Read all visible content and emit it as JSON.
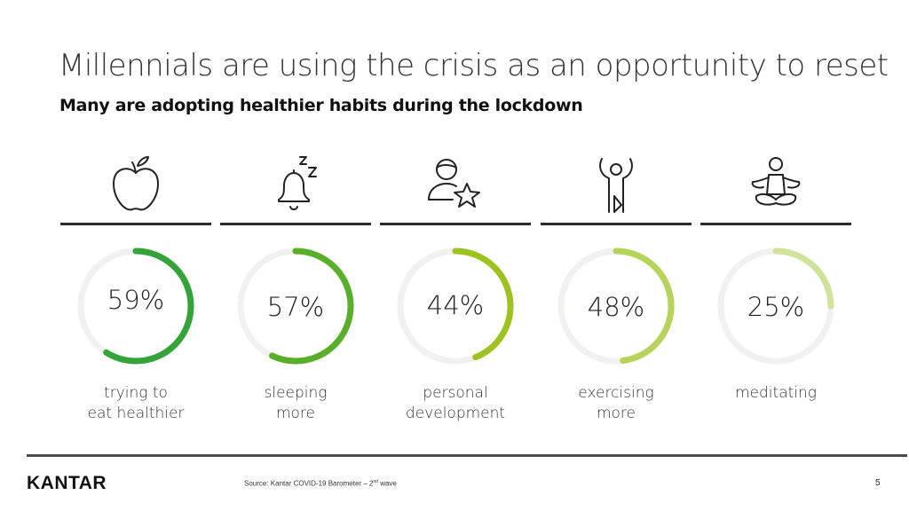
{
  "title": "Millennials are using the crisis as an opportunity to reset",
  "subtitle": "Many are adopting healthier habits during the lockdown",
  "chart_data": {
    "type": "pie",
    "categories": [
      "trying to eat healthier",
      "sleeping more",
      "personal development",
      "exercising more",
      "meditating"
    ],
    "values": [
      59,
      57,
      44,
      48,
      25
    ],
    "unit": "%",
    "items": [
      {
        "pct_text": "59%",
        "label_lines": [
          "trying to",
          "eat healthier"
        ],
        "icon": "apple-icon",
        "color": "#34a43a"
      },
      {
        "pct_text": "57%",
        "label_lines": [
          "sleeping",
          "more"
        ],
        "icon": "alarm-bell-zz-icon",
        "color": "#5aaf2a"
      },
      {
        "pct_text": "44%",
        "label_lines": [
          "personal",
          "development"
        ],
        "icon": "person-star-icon",
        "color": "#9ec21f"
      },
      {
        "pct_text": "48%",
        "label_lines": [
          "exercising",
          "more"
        ],
        "icon": "exercising-person-icon",
        "color": "#b6d35c"
      },
      {
        "pct_text": "25%",
        "label_lines": [
          "meditating"
        ],
        "icon": "meditating-person-icon",
        "color": "#cfe39a"
      }
    ],
    "track_color": "#f1f1ef"
  },
  "footer": {
    "logo": "KANTAR",
    "source_prefix": "Source: Kantar COVID-19 Barometer – 2",
    "source_sup": "nd",
    "source_suffix": " wave",
    "page_number": "5"
  }
}
